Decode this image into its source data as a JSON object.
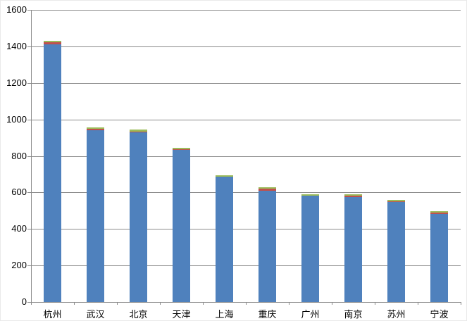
{
  "chart_data": {
    "type": "bar",
    "stacked": true,
    "title": "",
    "categories": [
      "杭州",
      "武汉",
      "北京",
      "天津",
      "上海",
      "重庆",
      "广州",
      "南京",
      "苏州",
      "宁波"
    ],
    "series": [
      {
        "color": "#4F81BD",
        "values": [
          1413,
          940,
          928,
          834,
          685,
          610,
          581,
          576,
          546,
          482
        ]
      },
      {
        "color": "#C0504D",
        "values": [
          8,
          8,
          6,
          2,
          2,
          11,
          2,
          7,
          7,
          7
        ]
      },
      {
        "color": "#9BBB59",
        "values": [
          10,
          8,
          10,
          8,
          8,
          7,
          8,
          7,
          7,
          7
        ]
      }
    ],
    "ylim": [
      0,
      1600
    ],
    "ytick_interval": 200,
    "yticks": [
      "1600",
      "1400",
      "1200",
      "1000",
      "800",
      "600",
      "400",
      "200",
      "0"
    ],
    "xlabel": "",
    "ylabel": "",
    "grid": "horizontal",
    "legend": "none"
  },
  "colors": {
    "grid": "#8a8a8a",
    "axis": "#8a8a8a",
    "background": "#ffffff",
    "series_blue": "#4F81BD",
    "series_red": "#C0504D",
    "series_green": "#9BBB59"
  }
}
